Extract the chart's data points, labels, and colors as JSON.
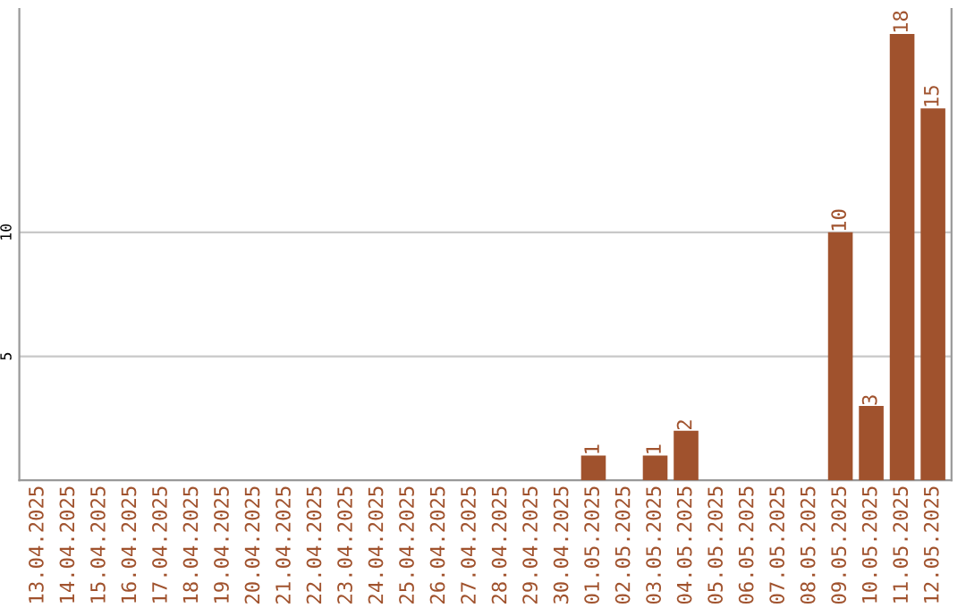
{
  "chart_data": {
    "type": "bar",
    "categories": [
      "13.04.2025",
      "14.04.2025",
      "15.04.2025",
      "16.04.2025",
      "17.04.2025",
      "18.04.2025",
      "19.04.2025",
      "20.04.2025",
      "21.04.2025",
      "22.04.2025",
      "23.04.2025",
      "24.04.2025",
      "25.04.2025",
      "26.04.2025",
      "27.04.2025",
      "28.04.2025",
      "29.04.2025",
      "30.04.2025",
      "01.05.2025",
      "02.05.2025",
      "03.05.2025",
      "04.05.2025",
      "05.05.2025",
      "06.05.2025",
      "07.05.2025",
      "08.05.2025",
      "09.05.2025",
      "10.05.2025",
      "11.05.2025",
      "12.05.2025"
    ],
    "values": [
      0,
      0,
      0,
      0,
      0,
      0,
      0,
      0,
      0,
      0,
      0,
      0,
      0,
      0,
      0,
      0,
      0,
      0,
      1,
      0,
      1,
      2,
      0,
      0,
      0,
      0,
      10,
      3,
      18,
      15
    ],
    "value_labels": [
      null,
      null,
      null,
      null,
      null,
      null,
      null,
      null,
      null,
      null,
      null,
      null,
      null,
      null,
      null,
      null,
      null,
      null,
      "1",
      null,
      "1",
      "2",
      null,
      null,
      null,
      null,
      "10",
      "3",
      "18",
      "15"
    ],
    "color": "#a0522d",
    "ylim": [
      0,
      19
    ],
    "yticks": [
      5,
      10
    ],
    "grid": "y"
  }
}
